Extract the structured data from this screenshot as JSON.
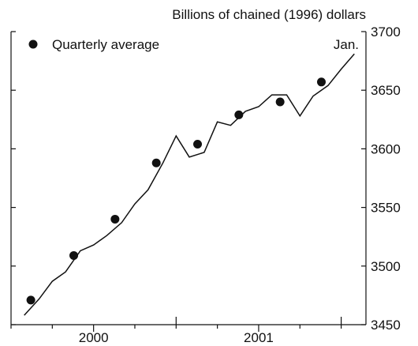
{
  "chart_data": {
    "type": "line",
    "unit_label": "Billions of chained (1996) dollars",
    "legend": {
      "marker_label": "Quarterly average",
      "placement": "top-left"
    },
    "annotation": "Jan.",
    "x_axis": {
      "tick_labels": [
        {
          "label": "2000",
          "x": 2000.0
        },
        {
          "label": "2001",
          "x": 2001.0
        }
      ],
      "range": [
        1999.5,
        2001.65
      ]
    },
    "y_axis": {
      "side": "right",
      "ticks": [
        3450,
        3500,
        3550,
        3600,
        3650,
        3700
      ],
      "tick_labels": [
        "3450",
        "3500",
        "3550",
        "3600",
        "3650",
        "3700"
      ],
      "ylim": [
        3450,
        3700
      ]
    },
    "grid": false,
    "series": [
      {
        "kind": "line",
        "points": [
          [
            1999.58,
            3458
          ],
          [
            1999.67,
            3472
          ],
          [
            1999.75,
            3487
          ],
          [
            1999.83,
            3495
          ],
          [
            1999.92,
            3513
          ],
          [
            2000.0,
            3518
          ],
          [
            2000.08,
            3526
          ],
          [
            2000.17,
            3537
          ],
          [
            2000.25,
            3553
          ],
          [
            2000.33,
            3565
          ],
          [
            2000.42,
            3588
          ],
          [
            2000.5,
            3611
          ],
          [
            2000.58,
            3593
          ],
          [
            2000.67,
            3597
          ],
          [
            2000.75,
            3623
          ],
          [
            2000.83,
            3620
          ],
          [
            2000.92,
            3632
          ],
          [
            2001.0,
            3636
          ],
          [
            2001.08,
            3646
          ],
          [
            2001.17,
            3646
          ],
          [
            2001.25,
            3628
          ],
          [
            2001.33,
            3645
          ],
          [
            2001.42,
            3654
          ],
          [
            2001.5,
            3668
          ],
          [
            2001.58,
            3681
          ]
        ]
      },
      {
        "kind": "points",
        "name": "Quarterly average",
        "points": [
          [
            1999.62,
            3471
          ],
          [
            1999.88,
            3509
          ],
          [
            2000.13,
            3540
          ],
          [
            2000.38,
            3588
          ],
          [
            2000.63,
            3604
          ],
          [
            2000.88,
            3629
          ],
          [
            2001.13,
            3640
          ],
          [
            2001.38,
            3657
          ]
        ]
      }
    ]
  }
}
